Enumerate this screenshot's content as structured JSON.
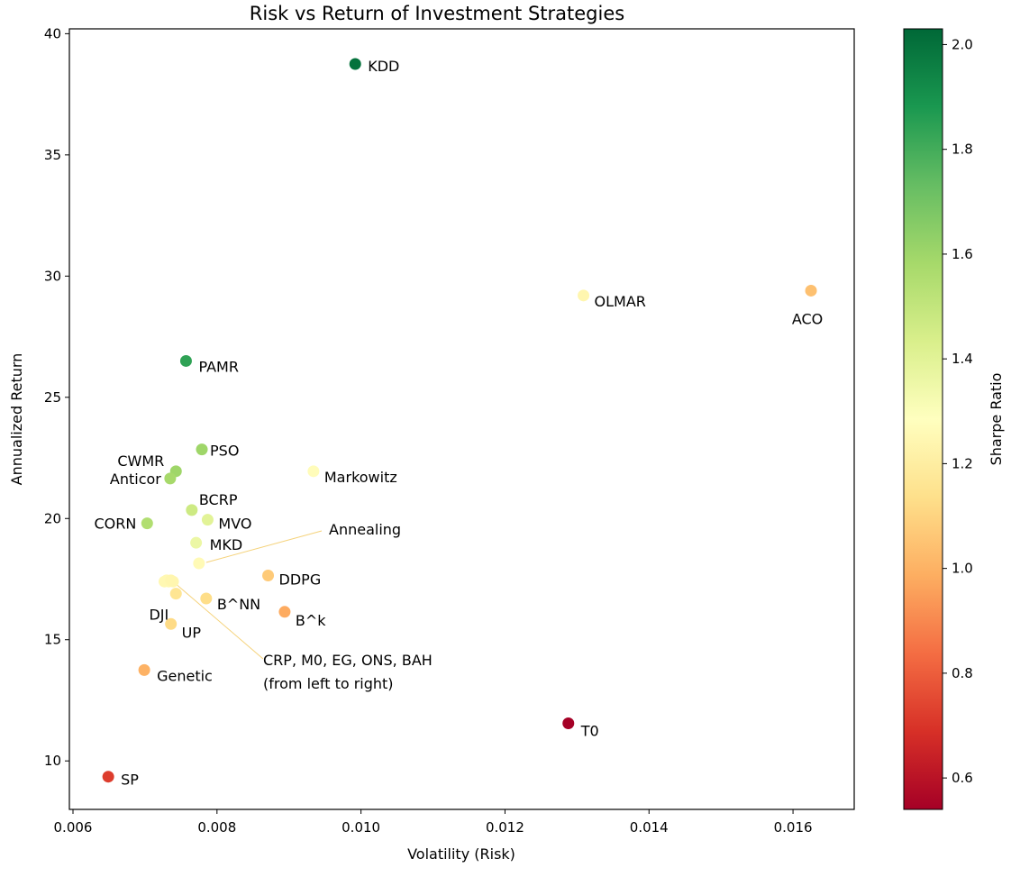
{
  "chart_data": {
    "type": "scatter",
    "title": "Risk vs Return of Investment Strategies",
    "xlabel": "Volatility (Risk)",
    "ylabel": "Annualized Return",
    "xlim": [
      0.00595,
      0.01685
    ],
    "ylim": [
      8.0,
      40.2
    ],
    "xticks": [
      0.006,
      0.008,
      0.01,
      0.012,
      0.014,
      0.016
    ],
    "xtick_labels": [
      "0.006",
      "0.008",
      "0.010",
      "0.012",
      "0.014",
      "0.016"
    ],
    "yticks": [
      10,
      15,
      20,
      25,
      30,
      35,
      40
    ],
    "ytick_labels": [
      "10",
      "15",
      "20",
      "25",
      "30",
      "35",
      "40"
    ],
    "grid": false,
    "colorbar": {
      "label": "Sharpe Ratio",
      "colormap": "RdYlGn",
      "range": [
        0.54,
        2.03
      ],
      "ticks": [
        0.6,
        0.8,
        1.0,
        1.2,
        1.4,
        1.6,
        1.8,
        2.0
      ],
      "tick_labels": [
        "0.6",
        "0.8",
        "1.0",
        "1.2",
        "1.4",
        "1.6",
        "1.8",
        "2.0"
      ]
    },
    "points": [
      {
        "name": "KDD",
        "x": 0.00992,
        "y": 38.75,
        "sharpe": 2.0
      },
      {
        "name": "OLMAR",
        "x": 0.01309,
        "y": 29.2,
        "sharpe": 1.24
      },
      {
        "name": "ACO",
        "x": 0.01625,
        "y": 29.4,
        "sharpe": 1.04
      },
      {
        "name": "PAMR",
        "x": 0.00757,
        "y": 26.5,
        "sharpe": 1.84
      },
      {
        "name": "PSO",
        "x": 0.00779,
        "y": 22.85,
        "sharpe": 1.6
      },
      {
        "name": "CWMR",
        "x": 0.00743,
        "y": 21.95,
        "sharpe": 1.6
      },
      {
        "name": "Anticor",
        "x": 0.00735,
        "y": 21.65,
        "sharpe": 1.58
      },
      {
        "name": "Markowitz",
        "x": 0.00934,
        "y": 21.95,
        "sharpe": 1.27
      },
      {
        "name": "BCRP",
        "x": 0.00765,
        "y": 20.35,
        "sharpe": 1.47
      },
      {
        "name": "CORN",
        "x": 0.00703,
        "y": 19.8,
        "sharpe": 1.55
      },
      {
        "name": "MVO",
        "x": 0.00787,
        "y": 19.95,
        "sharpe": 1.4
      },
      {
        "name": "MKD",
        "x": 0.00771,
        "y": 19.0,
        "sharpe": 1.36
      },
      {
        "name": "Annealing",
        "x": 0.00775,
        "y": 18.15,
        "sharpe": 1.26
      },
      {
        "name": "DDPG",
        "x": 0.00871,
        "y": 17.65,
        "sharpe": 1.07
      },
      {
        "name": "CRP",
        "x": 0.00727,
        "y": 17.4,
        "sharpe": 1.25
      },
      {
        "name": "M0",
        "x": 0.0073,
        "y": 17.45,
        "sharpe": 1.25
      },
      {
        "name": "EG",
        "x": 0.00733,
        "y": 17.4,
        "sharpe": 1.25
      },
      {
        "name": "ONS",
        "x": 0.00736,
        "y": 17.45,
        "sharpe": 1.24
      },
      {
        "name": "BAH",
        "x": 0.00739,
        "y": 17.4,
        "sharpe": 1.24
      },
      {
        "name": "DJI",
        "x": 0.00743,
        "y": 16.9,
        "sharpe": 1.16
      },
      {
        "name": "B^NN",
        "x": 0.00785,
        "y": 16.7,
        "sharpe": 1.13
      },
      {
        "name": "B^k",
        "x": 0.00894,
        "y": 16.15,
        "sharpe": 0.98
      },
      {
        "name": "UP",
        "x": 0.00736,
        "y": 15.65,
        "sharpe": 1.12
      },
      {
        "name": "Genetic",
        "x": 0.00699,
        "y": 13.75,
        "sharpe": 1.0
      },
      {
        "name": "T0",
        "x": 0.01288,
        "y": 11.55,
        "sharpe": 0.54
      },
      {
        "name": "SP",
        "x": 0.00649,
        "y": 9.35,
        "sharpe": 0.72
      }
    ],
    "annotations": [
      {
        "text": "Annealing",
        "points_to": "Annealing"
      },
      {
        "text_lines": [
          "CRP, M0, EG, ONS, BAH",
          "(from left to right)"
        ],
        "points_to": "CRP, M0, EG, ONS, BAH"
      }
    ]
  }
}
